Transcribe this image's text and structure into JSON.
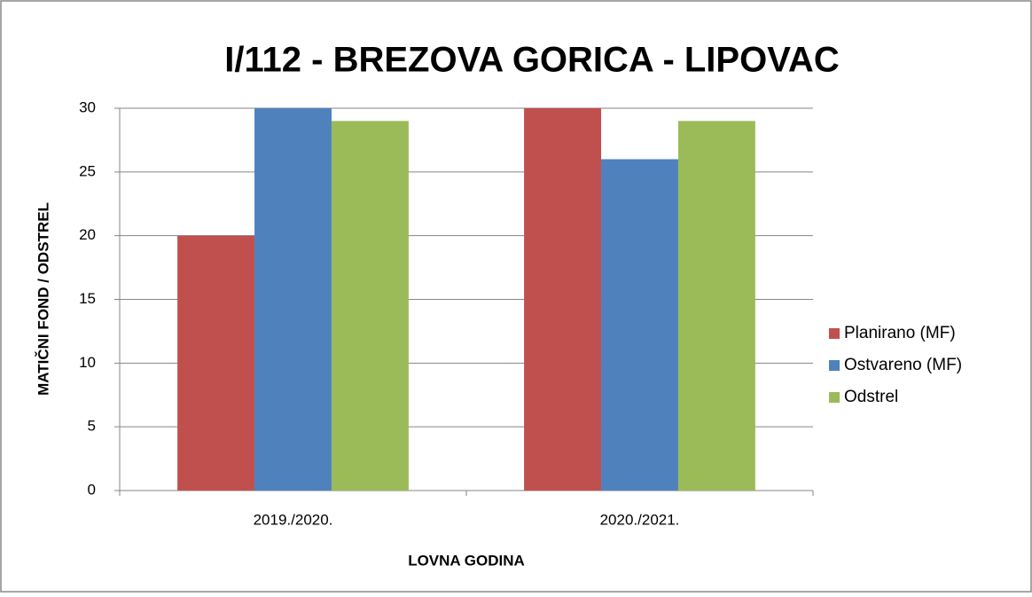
{
  "chart_data": {
    "type": "bar",
    "title": "I/112 - BREZOVA GORICA - LIPOVAC",
    "x_label": "LOVNA GODINA",
    "y_label": "MATIČNI FOND / ODSTREL",
    "categories": [
      "2019./2020.",
      "2020./2021."
    ],
    "series": [
      {
        "name": "Planirano (MF)",
        "color": "#c0504d",
        "values": [
          20,
          30
        ]
      },
      {
        "name": "Ostvareno (MF)",
        "color": "#4f81bd",
        "values": [
          30,
          26
        ]
      },
      {
        "name": "Odstrel",
        "color": "#9bbb59",
        "values": [
          29,
          29
        ]
      }
    ],
    "ylim": [
      0,
      30
    ],
    "yticks": [
      0,
      5,
      10,
      15,
      20,
      25,
      30
    ],
    "grid": true,
    "legend": "right"
  }
}
